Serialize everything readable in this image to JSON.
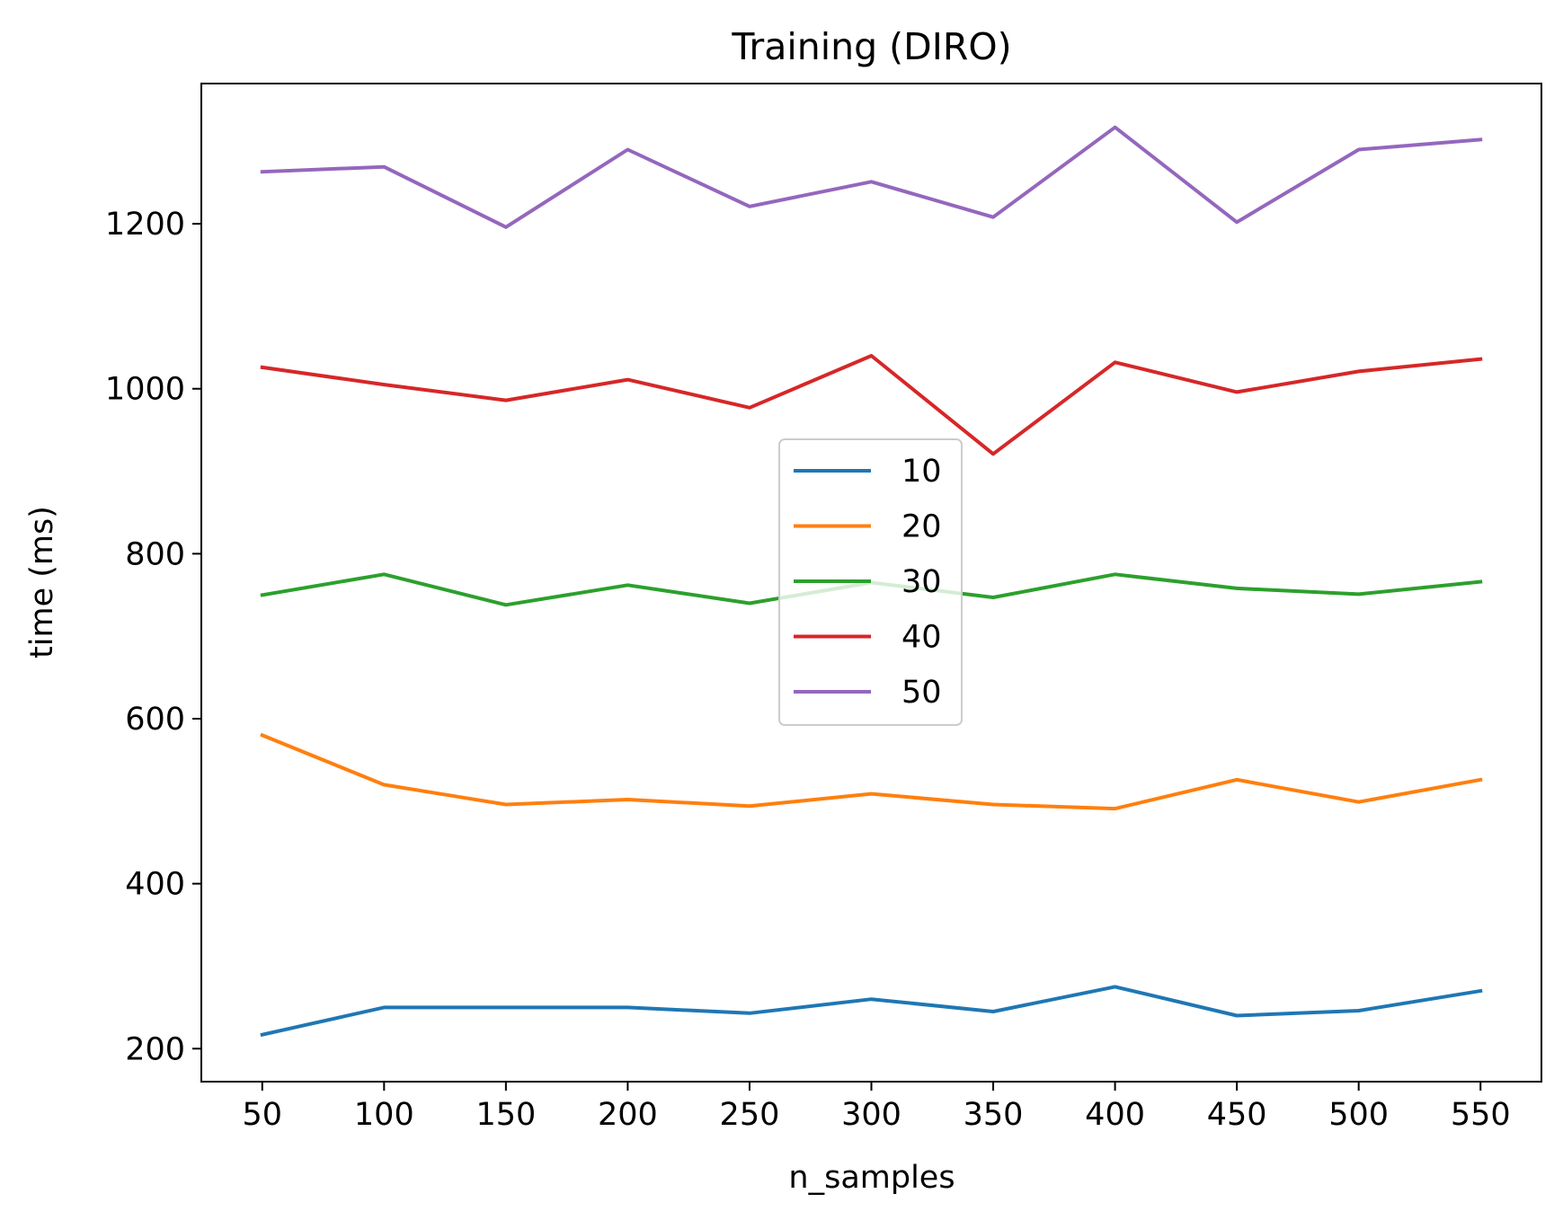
{
  "chart_data": {
    "type": "line",
    "title": "Training (DIRO)",
    "xlabel": "n_samples",
    "ylabel": "time (ms)",
    "x": [
      50,
      100,
      150,
      200,
      250,
      300,
      350,
      400,
      450,
      500,
      550
    ],
    "xticks": [
      "50",
      "100",
      "150",
      "200",
      "250",
      "300",
      "350",
      "400",
      "450",
      "500",
      "550"
    ],
    "yticks": [
      "200",
      "400",
      "600",
      "800",
      "1000",
      "1200"
    ],
    "xlim": [
      25,
      575
    ],
    "ylim": [
      160,
      1370
    ],
    "grid": false,
    "legend_position": "center",
    "series": [
      {
        "name": "10",
        "color": "#1f77b4",
        "values": [
          217,
          250,
          250,
          250,
          243,
          260,
          245,
          275,
          240,
          246,
          270
        ]
      },
      {
        "name": "20",
        "color": "#ff7f0e",
        "values": [
          580,
          520,
          496,
          502,
          494,
          509,
          496,
          491,
          526,
          499,
          526
        ]
      },
      {
        "name": "30",
        "color": "#2ca02c",
        "values": [
          750,
          775,
          738,
          762,
          740,
          765,
          747,
          775,
          758,
          751,
          766
        ]
      },
      {
        "name": "40",
        "color": "#d62728",
        "values": [
          1026,
          1005,
          986,
          1011,
          977,
          1040,
          921,
          1032,
          996,
          1021,
          1036
        ]
      },
      {
        "name": "50",
        "color": "#9467bd",
        "values": [
          1263,
          1269,
          1196,
          1290,
          1221,
          1251,
          1208,
          1317,
          1202,
          1290,
          1302
        ]
      }
    ]
  }
}
